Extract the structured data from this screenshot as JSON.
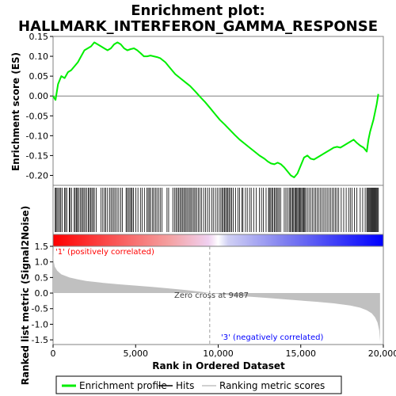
{
  "chart_data": {
    "type": "line",
    "title_line1": "Enrichment plot:",
    "title_line2": "HALLMARK_INTERFERON_GAMMA_RESPONSE",
    "es_panel": {
      "ylabel": "Enrichment score (ES)",
      "ylim": [
        -0.225,
        0.15
      ],
      "yticks": [
        0.15,
        0.1,
        0.05,
        0.0,
        -0.05,
        -0.1,
        -0.15,
        -0.2
      ],
      "ytick_labels": [
        "0.15",
        "0.10",
        "0.05",
        "0.00",
        "-0.05",
        "-0.10",
        "-0.15",
        "-0.20"
      ],
      "series_color": "#00ee00",
      "x": [
        0,
        150,
        300,
        500,
        700,
        900,
        1100,
        1300,
        1500,
        1700,
        1900,
        2100,
        2300,
        2500,
        2700,
        2900,
        3100,
        3300,
        3500,
        3700,
        3900,
        4100,
        4300,
        4500,
        4700,
        4900,
        5100,
        5300,
        5500,
        5700,
        5900,
        6100,
        6300,
        6500,
        6800,
        7100,
        7400,
        7700,
        8000,
        8300,
        8600,
        8900,
        9200,
        9500,
        9800,
        10100,
        10400,
        10700,
        11000,
        11300,
        11600,
        11900,
        12200,
        12500,
        12800,
        13000,
        13200,
        13400,
        13600,
        13800,
        14000,
        14200,
        14400,
        14600,
        14800,
        15000,
        15200,
        15400,
        15600,
        15800,
        16000,
        16200,
        16400,
        16600,
        16800,
        17000,
        17200,
        17400,
        17600,
        17800,
        18000,
        18200,
        18400,
        18600,
        18800,
        19000,
        19100,
        19200,
        19300,
        19400,
        19500,
        19600,
        19700
      ],
      "y": [
        0.0,
        -0.01,
        0.03,
        0.05,
        0.045,
        0.06,
        0.065,
        0.075,
        0.085,
        0.1,
        0.115,
        0.12,
        0.125,
        0.135,
        0.13,
        0.125,
        0.12,
        0.115,
        0.12,
        0.13,
        0.135,
        0.13,
        0.12,
        0.115,
        0.118,
        0.12,
        0.115,
        0.108,
        0.1,
        0.1,
        0.102,
        0.1,
        0.098,
        0.095,
        0.085,
        0.07,
        0.055,
        0.045,
        0.035,
        0.025,
        0.012,
        -0.002,
        -0.015,
        -0.03,
        -0.045,
        -0.06,
        -0.072,
        -0.085,
        -0.098,
        -0.11,
        -0.12,
        -0.13,
        -0.14,
        -0.15,
        -0.158,
        -0.165,
        -0.17,
        -0.172,
        -0.168,
        -0.172,
        -0.18,
        -0.19,
        -0.2,
        -0.205,
        -0.195,
        -0.175,
        -0.155,
        -0.15,
        -0.158,
        -0.16,
        -0.155,
        -0.15,
        -0.145,
        -0.14,
        -0.135,
        -0.13,
        -0.128,
        -0.13,
        -0.125,
        -0.12,
        -0.115,
        -0.11,
        -0.118,
        -0.125,
        -0.13,
        -0.14,
        -0.11,
        -0.09,
        -0.075,
        -0.06,
        -0.04,
        -0.02,
        0.005
      ]
    },
    "x_axis": {
      "label": "Rank in Ordered Dataset",
      "xlim": [
        0,
        20000
      ],
      "ticks": [
        0,
        5000,
        10000,
        15000,
        20000
      ],
      "tick_labels": [
        "0",
        "5,000",
        "10,000",
        "15,000",
        "20,000"
      ],
      "max_rank": 19800
    },
    "hits": [
      130,
      180,
      240,
      320,
      400,
      470,
      560,
      690,
      760,
      830,
      980,
      1030,
      1130,
      1280,
      1340,
      1410,
      1480,
      1540,
      1640,
      1720,
      1790,
      1870,
      1950,
      2040,
      2130,
      2200,
      2280,
      2350,
      2430,
      2500,
      2620,
      2900,
      3010,
      3110,
      3190,
      3300,
      3420,
      3510,
      3600,
      3690,
      3780,
      3880,
      3980,
      4100,
      4200,
      4420,
      4490,
      4570,
      4650,
      4720,
      4790,
      4870,
      5010,
      5140,
      5290,
      5400,
      5530,
      5680,
      5760,
      5840,
      5910,
      6030,
      6100,
      6200,
      6290,
      6390,
      6490,
      6590,
      6900,
      7000,
      7250,
      7350,
      7440,
      7520,
      7600,
      7680,
      7760,
      7830,
      7910,
      7990,
      8060,
      8140,
      8220,
      8300,
      8370,
      8460,
      8540,
      8620,
      8700,
      8800,
      8900,
      9000,
      9120,
      9230,
      9350,
      9460,
      9600,
      9700,
      9830,
      9940,
      10060,
      10160,
      10240,
      10310,
      10380,
      10450,
      10520,
      10590,
      10660,
      10740,
      10820,
      10910,
      11050,
      11200,
      11300,
      11430,
      11500,
      11650,
      11760,
      11900,
      12000,
      12150,
      12300,
      12500,
      12620,
      12730,
      12900,
      13050,
      13100,
      13180,
      13250,
      13320,
      13400,
      13470,
      13550,
      13620,
      13700,
      13780,
      14000,
      14100,
      14200,
      14300,
      14370,
      14440,
      14510,
      14570,
      14640,
      14700,
      14760,
      14820,
      14880,
      14940,
      15000,
      15060,
      15120,
      15180,
      15240,
      15300,
      15400,
      15500,
      15600,
      15700,
      15800,
      15900,
      16000,
      16100,
      16200,
      16300,
      16400,
      16500,
      16600,
      16700,
      16800,
      16900,
      17000,
      17100,
      17200,
      17300,
      17450,
      17600,
      17750,
      17900,
      18000,
      18100,
      18250,
      18400,
      18600,
      18750,
      18900,
      19000,
      19050,
      19100,
      19150,
      19200,
      19250,
      19300,
      19350,
      19400,
      19450,
      19500,
      19550,
      19600,
      19650,
      19700
    ],
    "metric_panel": {
      "ylabel": "Ranked list metric (Signal2Noise)",
      "ylim": [
        -1.65,
        1.5
      ],
      "yticks": [
        1.5,
        1.0,
        0.5,
        0.0,
        -0.5,
        -1.0,
        -1.5
      ],
      "ytick_labels": [
        "1.5",
        "1.0",
        "0.5",
        "0.0",
        "-0.5",
        "-1.0",
        "-1.5"
      ],
      "zero_cross_label": "Zero cross at 9487",
      "zero_cross": 9487,
      "pos_label": "'1' (positively correlated)",
      "neg_label": "'3' (negatively correlated)",
      "pos_color": "#ff0000",
      "neg_color": "#0000ff",
      "fill_color": "#c0c0c0",
      "curve_x": [
        0,
        30,
        100,
        250,
        500,
        1000,
        1500,
        2000,
        3000,
        4000,
        5000,
        6000,
        7000,
        8000,
        9000,
        9487,
        10000,
        11000,
        12000,
        13000,
        14000,
        15000,
        16000,
        17000,
        18000,
        18600,
        19000,
        19300,
        19500,
        19650,
        19750,
        19800
      ],
      "curve_y": [
        1.5,
        1.05,
        0.85,
        0.72,
        0.6,
        0.5,
        0.44,
        0.39,
        0.33,
        0.28,
        0.24,
        0.2,
        0.15,
        0.1,
        0.04,
        0.0,
        -0.03,
        -0.08,
        -0.12,
        -0.16,
        -0.2,
        -0.24,
        -0.28,
        -0.33,
        -0.4,
        -0.47,
        -0.55,
        -0.65,
        -0.78,
        -0.95,
        -1.2,
        -1.55
      ]
    },
    "legend": {
      "items": [
        {
          "label": "Enrichment profile",
          "color": "#00ee00",
          "kind": "line"
        },
        {
          "label": "Hits",
          "color": "#000000",
          "kind": "line"
        },
        {
          "label": "Ranking metric scores",
          "color": "#c0c0c0",
          "kind": "line"
        }
      ]
    }
  }
}
